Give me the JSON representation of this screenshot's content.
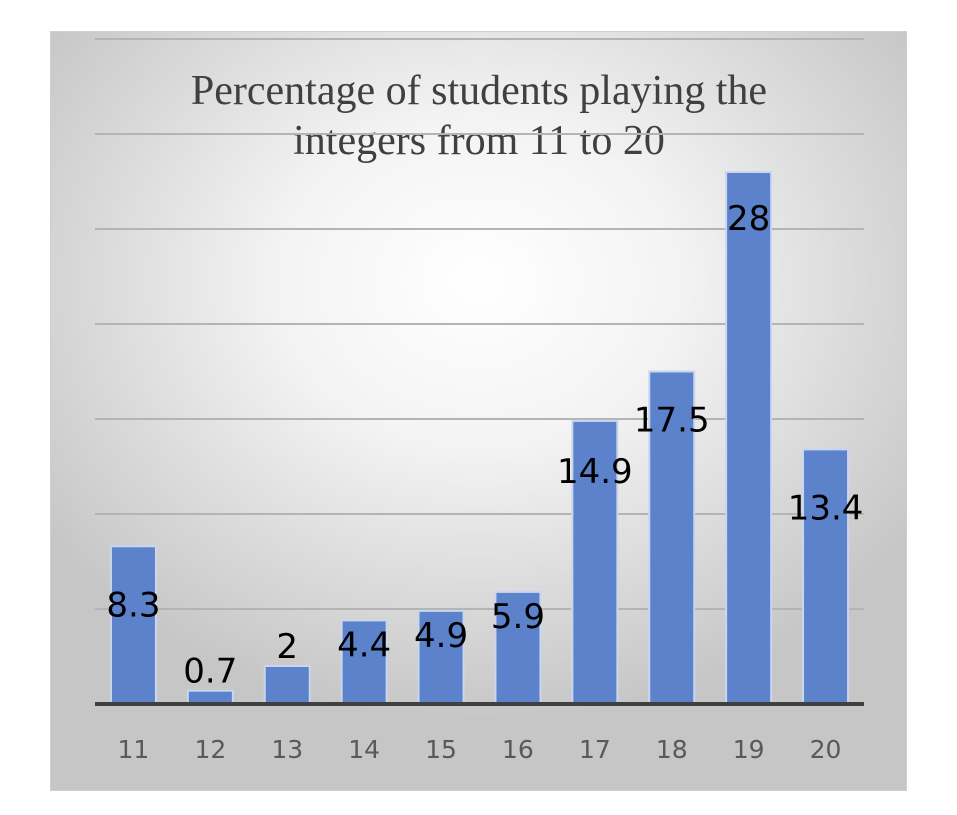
{
  "chart_data": {
    "type": "bar",
    "title_lines": [
      "Percentage of students playing the",
      "integers from 11 to 20"
    ],
    "categories": [
      "11",
      "12",
      "13",
      "14",
      "15",
      "16",
      "17",
      "18",
      "19",
      "20"
    ],
    "values": [
      8.3,
      0.7,
      2,
      4.4,
      4.9,
      5.9,
      14.9,
      17.5,
      28,
      13.4
    ],
    "data_labels": [
      "8.3",
      "0.7",
      "2",
      "4.4",
      "4.9",
      "5.9",
      "14.9",
      "17.5",
      "28",
      "13.4"
    ],
    "ylim": [
      0,
      35
    ],
    "y_gridline_step": 5,
    "y_tick_labels_shown": false,
    "grid": true,
    "legend": "none",
    "colors": {
      "bar": "#5b82cb",
      "axis": "#404040",
      "grid": "#b4b4b4",
      "title": "#404040"
    }
  }
}
